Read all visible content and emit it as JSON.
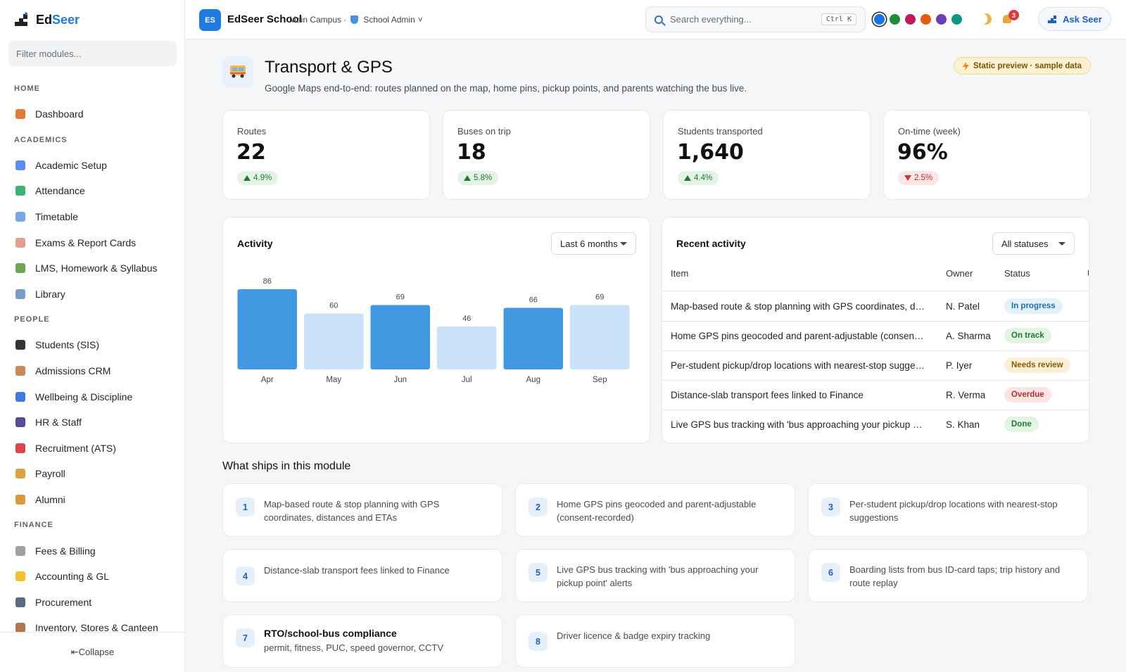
{
  "brand": {
    "name_main": "Ed",
    "name_accent": "Seer"
  },
  "sidebar": {
    "filter_placeholder": "Filter modules...",
    "sections": [
      {
        "title": "HOME",
        "items": [
          {
            "label": "Dashboard",
            "icon": "house-icon",
            "color": "#e07b39"
          }
        ]
      },
      {
        "title": "ACADEMICS",
        "items": [
          {
            "label": "Academic Setup",
            "icon": "calendar-icon",
            "color": "#5b8def"
          },
          {
            "label": "Attendance",
            "icon": "checkbox-icon",
            "color": "#3cb371"
          },
          {
            "label": "Timetable",
            "icon": "calendar-icon",
            "color": "#7aa7e8"
          },
          {
            "label": "Exams & Report Cards",
            "icon": "memo-icon",
            "color": "#e0a090"
          },
          {
            "label": "LMS, Homework & Syllabus",
            "icon": "books-icon",
            "color": "#6aa84f"
          },
          {
            "label": "Library",
            "icon": "open-book-icon",
            "color": "#7a9cc6"
          }
        ]
      },
      {
        "title": "PEOPLE",
        "items": [
          {
            "label": "Students (SIS)",
            "icon": "graduation-cap-icon",
            "color": "#333333"
          },
          {
            "label": "Admissions CRM",
            "icon": "clipboard-icon",
            "color": "#c88a5a"
          },
          {
            "label": "Wellbeing & Discipline",
            "icon": "heart-icon",
            "color": "#3d7be0"
          },
          {
            "label": "HR & Staff",
            "icon": "people-icon",
            "color": "#5a4a9a"
          },
          {
            "label": "Recruitment (ATS)",
            "icon": "magnet-icon",
            "color": "#e0434b"
          },
          {
            "label": "Payroll",
            "icon": "money-bag-icon",
            "color": "#d9a441"
          },
          {
            "label": "Alumni",
            "icon": "medal-icon",
            "color": "#d99a3e"
          }
        ]
      },
      {
        "title": "FINANCE",
        "items": [
          {
            "label": "Fees & Billing",
            "icon": "receipt-icon",
            "color": "#9aa0a6"
          },
          {
            "label": "Accounting & GL",
            "icon": "ledger-icon",
            "color": "#f0c030"
          },
          {
            "label": "Procurement",
            "icon": "cart-icon",
            "color": "#5a6b80"
          },
          {
            "label": "Inventory, Stores & Canteen",
            "icon": "package-icon",
            "color": "#b07a4a"
          }
        ]
      }
    ],
    "collapse_label": "⇤Collapse"
  },
  "topbar": {
    "badge": "ES",
    "school_name": "EdSeer School",
    "campus": "Main Campus ·",
    "role": "School Admin",
    "role_caret": "˅",
    "search_placeholder": "Search everything...",
    "shortcut": "Ctrl K",
    "theme_colors": [
      "#1a73e8",
      "#1e8e3e",
      "#c2185b",
      "#e8590c",
      "#6a3fb5",
      "#0f9488"
    ],
    "notification_count": "3",
    "ask_label": "Ask Seer"
  },
  "page": {
    "title": "Transport & GPS",
    "subtitle": "Google Maps end-to-end: routes planned on the map, home pins, pickup points, and parents watching the bus live.",
    "preview_badge": "Static preview · sample data"
  },
  "kpis": [
    {
      "label": "Routes",
      "value": "22",
      "delta": "4.9%",
      "direction": "up"
    },
    {
      "label": "Buses on trip",
      "value": "18",
      "delta": "5.8%",
      "direction": "up"
    },
    {
      "label": "Students transported",
      "value": "1,640",
      "delta": "4.4%",
      "direction": "up"
    },
    {
      "label": "On-time (week)",
      "value": "96%",
      "delta": "2.5%",
      "direction": "down"
    }
  ],
  "activity": {
    "title": "Activity",
    "range_label": "Last 6 months"
  },
  "chart_data": {
    "type": "bar",
    "categories": [
      "Apr",
      "May",
      "Jun",
      "Jul",
      "Aug",
      "Sep"
    ],
    "values": [
      86,
      60,
      69,
      46,
      66,
      69
    ],
    "title": "Activity",
    "xlabel": "",
    "ylabel": "",
    "data_labels": true,
    "grid": false,
    "colors": [
      "#4299e1",
      "#c9e2f7",
      "#4299e1",
      "#c9e2f7",
      "#4299e1",
      "#c9e2f7"
    ]
  },
  "recent": {
    "title": "Recent activity",
    "filter_label": "All statuses",
    "columns": [
      "Item",
      "Owner",
      "Status",
      "U"
    ],
    "rows": [
      {
        "item": "Map-based route & stop planning with GPS coordinates, distances and ETAs",
        "owner": "N. Patel",
        "status": "In progress",
        "status_bg": "#e3f1fb",
        "status_fg": "#1d6fb0"
      },
      {
        "item": "Home GPS pins geocoded and parent-adjustable (consent-recorded)",
        "owner": "A. Sharma",
        "status": "On track",
        "status_bg": "#e3f3e4",
        "status_fg": "#1e7b34"
      },
      {
        "item": "Per-student pickup/drop locations with nearest-stop suggestions",
        "owner": "P. Iyer",
        "status": "Needs review",
        "status_bg": "#fbf0d7",
        "status_fg": "#8a5a00"
      },
      {
        "item": "Distance-slab transport fees linked to Finance",
        "owner": "R. Verma",
        "status": "Overdue",
        "status_bg": "#fbe4e4",
        "status_fg": "#b4302f"
      },
      {
        "item": "Live GPS bus tracking with 'bus approaching your pickup point' alerts",
        "owner": "S. Khan",
        "status": "Done",
        "status_bg": "#e3f3e4",
        "status_fg": "#1e7b34"
      }
    ]
  },
  "features": {
    "title": "What ships in this module",
    "items": [
      {
        "num": "1",
        "text": "Map-based route & stop planning with GPS coordinates, distances and ETAs"
      },
      {
        "num": "2",
        "text": "Home GPS pins geocoded and parent-adjustable (consent-recorded)"
      },
      {
        "num": "3",
        "text": "Per-student pickup/drop locations with nearest-stop suggestions"
      },
      {
        "num": "4",
        "text": "Distance-slab transport fees linked to Finance"
      },
      {
        "num": "5",
        "text": "Live GPS bus tracking with 'bus approaching your pickup point' alerts"
      },
      {
        "num": "6",
        "text": "Boarding lists from bus ID-card taps; trip history and route replay"
      },
      {
        "num": "7",
        "heading": "RTO/school-bus compliance",
        "text": "permit, fitness, PUC, speed governor, CCTV"
      },
      {
        "num": "8",
        "text": "Driver licence & badge expiry tracking"
      }
    ]
  }
}
